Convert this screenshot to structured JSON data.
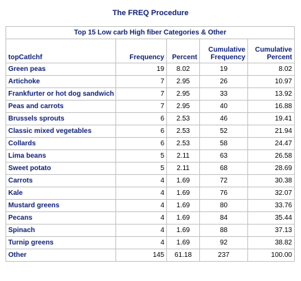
{
  "procedure_title": "The FREQ Procedure",
  "table": {
    "caption": "Top 15 Low carb High fiber Categories & Other",
    "columns": {
      "name": "topCatlchf",
      "frequency": "Frequency",
      "percent": "Percent",
      "cum_frequency_line1": "Cumulative",
      "cum_frequency_line2": "Frequency",
      "cum_percent_line1": "Cumulative",
      "cum_percent_line2": "Percent"
    },
    "rows": [
      {
        "name": "Green peas",
        "frequency": "19",
        "percent": "8.02",
        "cum_frequency": "19",
        "cum_percent": "8.02"
      },
      {
        "name": "Artichoke",
        "frequency": "7",
        "percent": "2.95",
        "cum_frequency": "26",
        "cum_percent": "10.97"
      },
      {
        "name": "Frankfurter or hot dog sandwich",
        "frequency": "7",
        "percent": "2.95",
        "cum_frequency": "33",
        "cum_percent": "13.92"
      },
      {
        "name": "Peas and carrots",
        "frequency": "7",
        "percent": "2.95",
        "cum_frequency": "40",
        "cum_percent": "16.88"
      },
      {
        "name": "Brussels sprouts",
        "frequency": "6",
        "percent": "2.53",
        "cum_frequency": "46",
        "cum_percent": "19.41"
      },
      {
        "name": "Classic mixed vegetables",
        "frequency": "6",
        "percent": "2.53",
        "cum_frequency": "52",
        "cum_percent": "21.94"
      },
      {
        "name": "Collards",
        "frequency": "6",
        "percent": "2.53",
        "cum_frequency": "58",
        "cum_percent": "24.47"
      },
      {
        "name": "Lima beans",
        "frequency": "5",
        "percent": "2.11",
        "cum_frequency": "63",
        "cum_percent": "26.58"
      },
      {
        "name": "Sweet potato",
        "frequency": "5",
        "percent": "2.11",
        "cum_frequency": "68",
        "cum_percent": "28.69"
      },
      {
        "name": "Carrots",
        "frequency": "4",
        "percent": "1.69",
        "cum_frequency": "72",
        "cum_percent": "30.38"
      },
      {
        "name": "Kale",
        "frequency": "4",
        "percent": "1.69",
        "cum_frequency": "76",
        "cum_percent": "32.07"
      },
      {
        "name": "Mustard greens",
        "frequency": "4",
        "percent": "1.69",
        "cum_frequency": "80",
        "cum_percent": "33.76"
      },
      {
        "name": "Pecans",
        "frequency": "4",
        "percent": "1.69",
        "cum_frequency": "84",
        "cum_percent": "35.44"
      },
      {
        "name": "Spinach",
        "frequency": "4",
        "percent": "1.69",
        "cum_frequency": "88",
        "cum_percent": "37.13"
      },
      {
        "name": "Turnip greens",
        "frequency": "4",
        "percent": "1.69",
        "cum_frequency": "92",
        "cum_percent": "38.82"
      },
      {
        "name": "Other",
        "frequency": "145",
        "percent": "61.18",
        "cum_frequency": "237",
        "cum_percent": "100.00"
      }
    ]
  },
  "colors": {
    "header_text": "#112277",
    "border": "#c1c1c1",
    "background": "#ffffff"
  }
}
